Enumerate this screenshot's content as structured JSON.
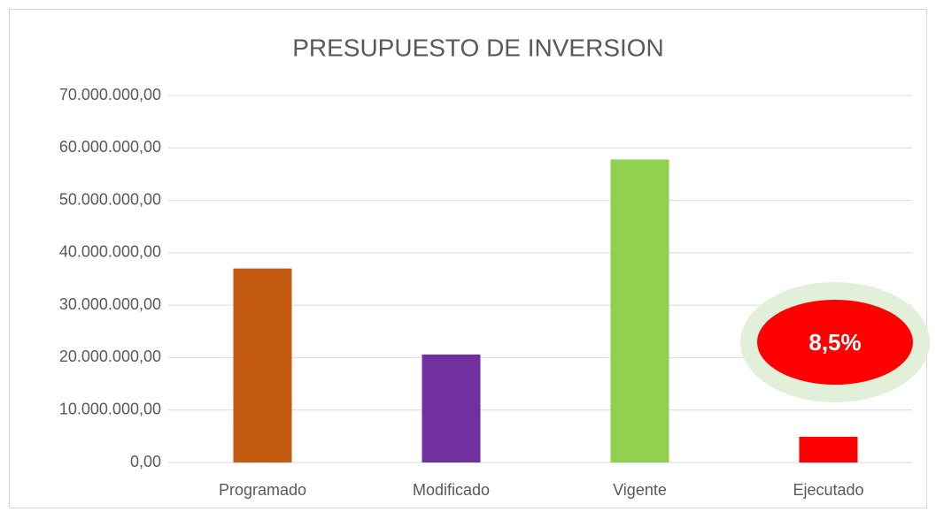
{
  "chart_data": {
    "type": "bar",
    "title": "PRESUPUESTO DE INVERSION",
    "categories": [
      "Programado",
      "Modificado",
      "Vigente",
      "Ejecutado"
    ],
    "values": [
      37000000,
      20600000,
      57800000,
      4900000
    ],
    "colors": [
      "#c55a11",
      "#7030a0",
      "#92d050",
      "#ff0000"
    ],
    "ylim": [
      0,
      70000000
    ],
    "yticks": [
      {
        "value": 0,
        "label": "0,00"
      },
      {
        "value": 10000000,
        "label": "10.000.000,00"
      },
      {
        "value": 20000000,
        "label": "20.000.000,00"
      },
      {
        "value": 30000000,
        "label": "30.000.000,00"
      },
      {
        "value": 40000000,
        "label": "40.000.000,00"
      },
      {
        "value": 50000000,
        "label": "50.000.000,00"
      },
      {
        "value": 60000000,
        "label": "60.000.000,00"
      },
      {
        "value": 70000000,
        "label": "70.000.000,00"
      }
    ],
    "grid": true,
    "annotation": "8,5%"
  }
}
